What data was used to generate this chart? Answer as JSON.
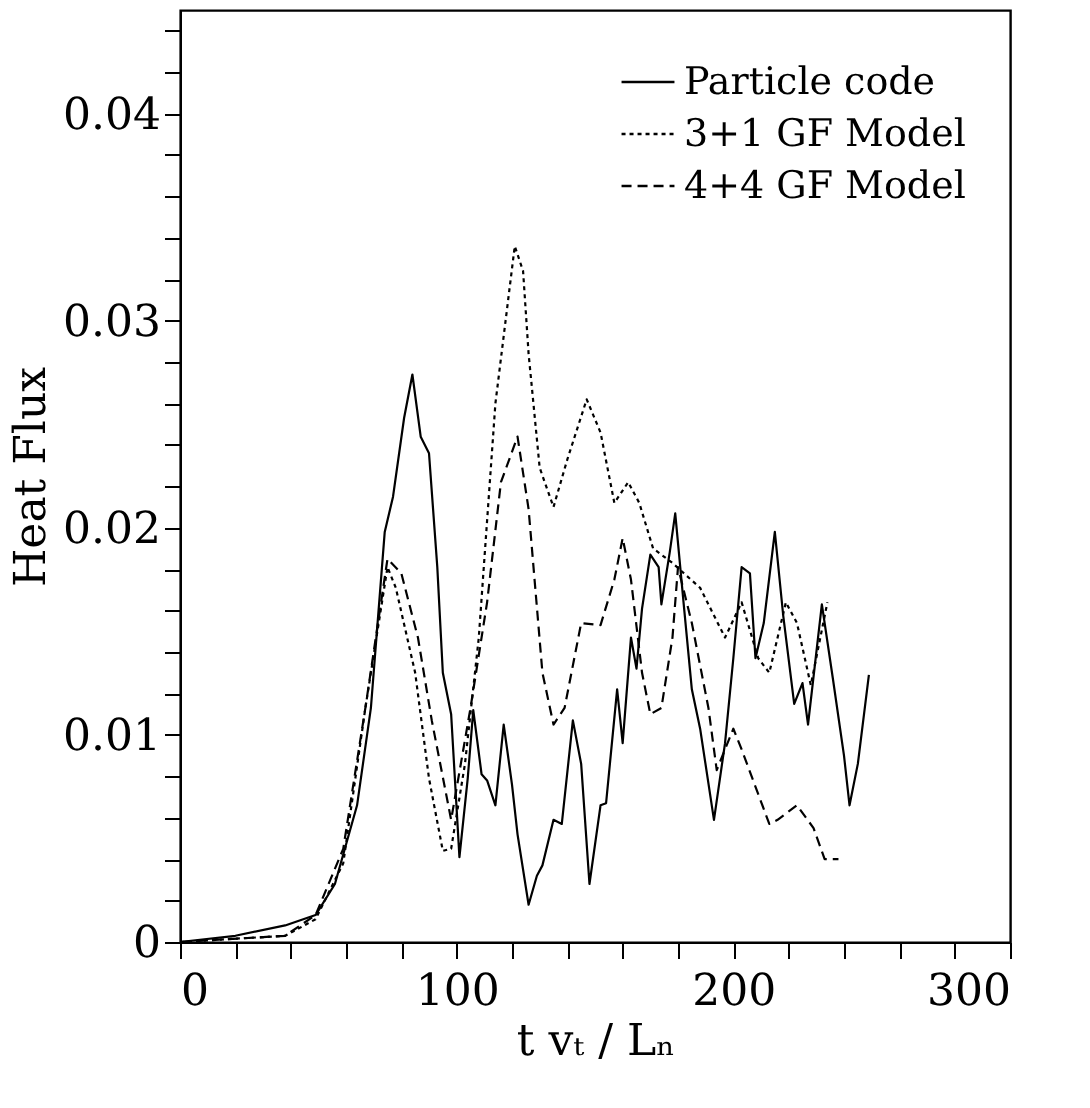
{
  "chart_data": {
    "type": "line",
    "xlabel": "t vₜ / Lₙ",
    "ylabel": "Heat Flux",
    "xlim": [
      0,
      300
    ],
    "ylim": [
      0,
      0.045
    ],
    "xticks": [
      0,
      {
        "value": 20,
        "label": null
      },
      {
        "value": 40,
        "label": null
      },
      {
        "value": 60,
        "label": null
      },
      {
        "value": 80,
        "label": null
      },
      100,
      {
        "value": 120,
        "label": null
      },
      {
        "value": 140,
        "label": null
      },
      {
        "value": 160,
        "label": null
      },
      {
        "value": 180,
        "label": null
      },
      200,
      {
        "value": 220,
        "label": null
      },
      {
        "value": 240,
        "label": null
      },
      {
        "value": 260,
        "label": null
      },
      {
        "value": 280,
        "label": null
      },
      300
    ],
    "yticks": [
      0,
      {
        "value": 0.002,
        "label": null
      },
      {
        "value": 0.004,
        "label": null
      },
      {
        "value": 0.006,
        "label": null
      },
      {
        "value": 0.008,
        "label": null
      },
      0.01,
      {
        "value": 0.012,
        "label": null
      },
      {
        "value": 0.014,
        "label": null
      },
      {
        "value": 0.016,
        "label": null
      },
      {
        "value": 0.018,
        "label": null
      },
      0.02,
      {
        "value": 0.022,
        "label": null
      },
      {
        "value": 0.024,
        "label": null
      },
      {
        "value": 0.026,
        "label": null
      },
      {
        "value": 0.028,
        "label": null
      },
      0.03,
      {
        "value": 0.032,
        "label": null
      },
      {
        "value": 0.034,
        "label": null
      },
      {
        "value": 0.036,
        "label": null
      },
      {
        "value": 0.038,
        "label": null
      },
      0.04,
      {
        "value": 0.042,
        "label": null
      },
      {
        "value": 0.044,
        "label": null
      }
    ],
    "grid": false,
    "legend": "top right",
    "marker": "none",
    "series": [
      {
        "name": "Particle code",
        "color": "#000000",
        "line_style": "solid",
        "x": [
          0,
          20,
          38,
          49,
          56,
          64,
          69,
          74,
          77,
          81,
          84,
          87,
          90,
          93,
          95,
          98,
          101,
          104,
          106,
          109,
          111,
          114,
          117,
          120,
          122,
          126,
          129,
          131,
          135,
          138,
          142,
          145,
          148,
          152,
          154,
          158,
          160,
          163,
          165,
          167,
          170,
          173,
          174,
          177,
          179,
          182,
          185,
          188,
          193,
          197,
          200,
          203,
          206,
          208,
          211,
          215,
          218,
          222,
          225,
          227,
          232,
          236,
          240,
          242,
          245,
          249
        ],
        "values": [
          0,
          0.0003,
          0.0008,
          0.0013,
          0.0028,
          0.0066,
          0.0113,
          0.0198,
          0.0215,
          0.0253,
          0.0274,
          0.0244,
          0.0236,
          0.0181,
          0.013,
          0.011,
          0.0041,
          0.0079,
          0.0112,
          0.0081,
          0.0078,
          0.0066,
          0.0105,
          0.0076,
          0.0052,
          0.0018,
          0.0032,
          0.0037,
          0.0059,
          0.0057,
          0.0107,
          0.0086,
          0.0028,
          0.0066,
          0.0067,
          0.0122,
          0.0096,
          0.0147,
          0.0132,
          0.0161,
          0.0187,
          0.0181,
          0.0163,
          0.0188,
          0.0207,
          0.0164,
          0.0122,
          0.0103,
          0.0059,
          0.0096,
          0.0137,
          0.0181,
          0.0178,
          0.0137,
          0.0154,
          0.0198,
          0.0158,
          0.0115,
          0.0125,
          0.0105,
          0.0163,
          0.0127,
          0.009,
          0.0066,
          0.0086,
          0.0129
        ]
      },
      {
        "name": "3+1 GF Model",
        "color": "#000000",
        "line_style": "dotted",
        "x": [
          0,
          38,
          49,
          59,
          67,
          75,
          78,
          85,
          90,
          95,
          98,
          103,
          108,
          114,
          121,
          124,
          126,
          130,
          135,
          140,
          147,
          152,
          157,
          162,
          166,
          171,
          178,
          188,
          197,
          203,
          209,
          213,
          219,
          223,
          228,
          234
        ],
        "values": [
          0,
          0.0003,
          0.0011,
          0.0038,
          0.0113,
          0.0181,
          0.0171,
          0.013,
          0.0079,
          0.0044,
          0.0045,
          0.0086,
          0.0147,
          0.026,
          0.0336,
          0.0324,
          0.0284,
          0.0229,
          0.021,
          0.0233,
          0.0262,
          0.0246,
          0.0212,
          0.0222,
          0.0212,
          0.019,
          0.0183,
          0.0171,
          0.0147,
          0.0164,
          0.0137,
          0.013,
          0.0164,
          0.0154,
          0.0124,
          0.0164
        ]
      },
      {
        "name": "4+4 GF Model",
        "color": "#000000",
        "line_style": "dashed",
        "x": [
          0,
          38,
          49,
          59,
          67,
          75,
          80,
          86,
          91,
          98,
          105,
          111,
          116,
          122,
          126,
          131,
          135,
          139,
          145,
          152,
          157,
          160,
          163,
          167,
          170,
          174,
          178,
          180,
          185,
          191,
          194,
          200,
          203,
          213,
          216,
          223,
          229,
          233,
          238
        ],
        "values": [
          0,
          0.0003,
          0.0013,
          0.0045,
          0.0113,
          0.0185,
          0.0178,
          0.0147,
          0.0107,
          0.0059,
          0.0113,
          0.0164,
          0.0222,
          0.0244,
          0.0209,
          0.013,
          0.0105,
          0.0113,
          0.0154,
          0.0153,
          0.0175,
          0.0195,
          0.0175,
          0.013,
          0.011,
          0.0113,
          0.0147,
          0.0181,
          0.0154,
          0.0113,
          0.0083,
          0.0103,
          0.0093,
          0.0057,
          0.0059,
          0.0066,
          0.0055,
          0.004,
          0.004
        ]
      }
    ]
  }
}
